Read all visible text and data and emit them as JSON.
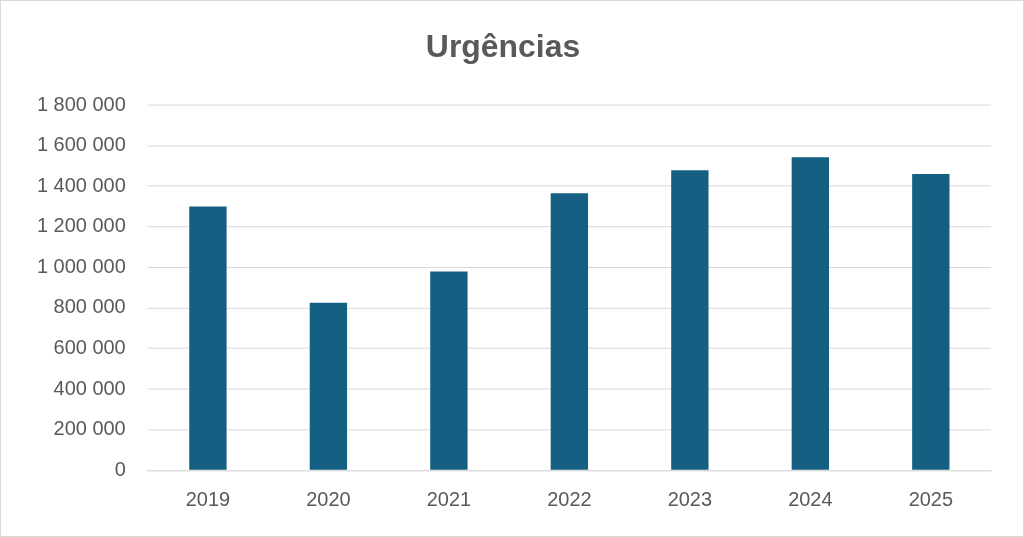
{
  "chart_data": {
    "type": "bar",
    "title": "Urgências",
    "categories": [
      "2019",
      "2020",
      "2021",
      "2022",
      "2023",
      "2024",
      "2025"
    ],
    "values": [
      1300000,
      825000,
      980000,
      1365000,
      1478000,
      1543000,
      1460000
    ],
    "color": "#156082",
    "ylim": [
      0,
      1800000
    ],
    "yticks": [
      0,
      {
        "value": 200000,
        "label": "200 000"
      },
      {
        "value": 400000,
        "label": "400 000"
      },
      {
        "value": 600000,
        "label": "600 000"
      },
      {
        "value": 800000,
        "label": "800 000"
      },
      {
        "value": 1000000,
        "label": "1 000 000"
      },
      {
        "value": 1200000,
        "label": "1 200 000"
      },
      {
        "value": 1400000,
        "label": "1 400 000"
      },
      {
        "value": 1600000,
        "label": "1 600 000"
      },
      {
        "value": 1800000,
        "label": "1 800 000"
      }
    ],
    "grid": "y",
    "legend": false
  }
}
